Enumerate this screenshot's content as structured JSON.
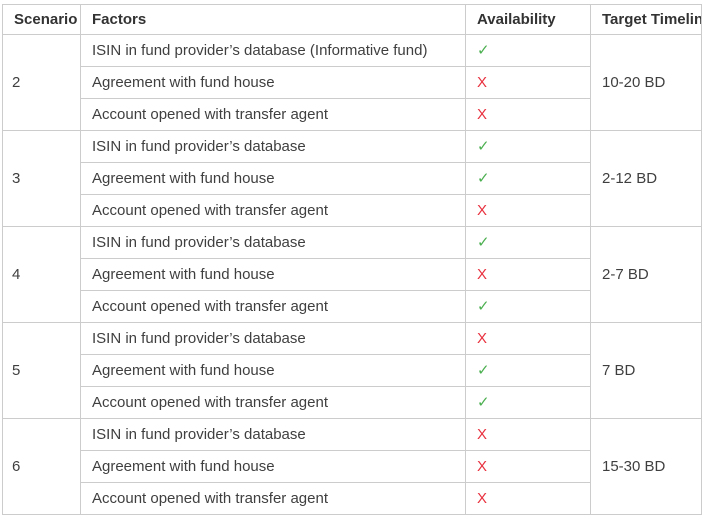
{
  "table": {
    "headers": [
      "Scenario",
      "Factors",
      "Availability",
      "Target Timeline"
    ],
    "availability_symbols": {
      "yes": "✓",
      "no": "X"
    },
    "scenarios": [
      {
        "scenario": "2",
        "target_timeline": "10-20 BD",
        "factors": [
          {
            "label": "ISIN in fund provider’s database (Informative fund)",
            "available": "yes"
          },
          {
            "label": "Agreement with fund house",
            "available": "no"
          },
          {
            "label": "Account opened with transfer agent",
            "available": "no"
          }
        ]
      },
      {
        "scenario": "3",
        "target_timeline": "2-12 BD",
        "factors": [
          {
            "label": "ISIN in fund provider’s database",
            "available": "yes"
          },
          {
            "label": "Agreement with fund house",
            "available": "yes"
          },
          {
            "label": "Account opened with transfer agent",
            "available": "no"
          }
        ]
      },
      {
        "scenario": "4",
        "target_timeline": "2-7 BD",
        "factors": [
          {
            "label": "ISIN in fund provider’s database",
            "available": "yes"
          },
          {
            "label": "Agreement with fund house",
            "available": "no"
          },
          {
            "label": "Account opened with transfer agent",
            "available": "yes"
          }
        ]
      },
      {
        "scenario": "5",
        "target_timeline": "7 BD",
        "factors": [
          {
            "label": "ISIN in fund provider’s database",
            "available": "no"
          },
          {
            "label": "Agreement with fund house",
            "available": "yes"
          },
          {
            "label": "Account opened with transfer agent",
            "available": "yes"
          }
        ]
      },
      {
        "scenario": "6",
        "target_timeline": "15-30 BD",
        "factors": [
          {
            "label": "ISIN in fund provider’s database",
            "available": "no"
          },
          {
            "label": "Agreement with fund house",
            "available": "no"
          },
          {
            "label": "Account opened with transfer agent",
            "available": "no"
          }
        ]
      }
    ]
  },
  "colors": {
    "check_green": "#4caf50",
    "cross_red": "#e8313f",
    "border": "#cccccc",
    "header_text": "#333333",
    "body_text": "#3f3f3f",
    "background": "#ffffff"
  }
}
